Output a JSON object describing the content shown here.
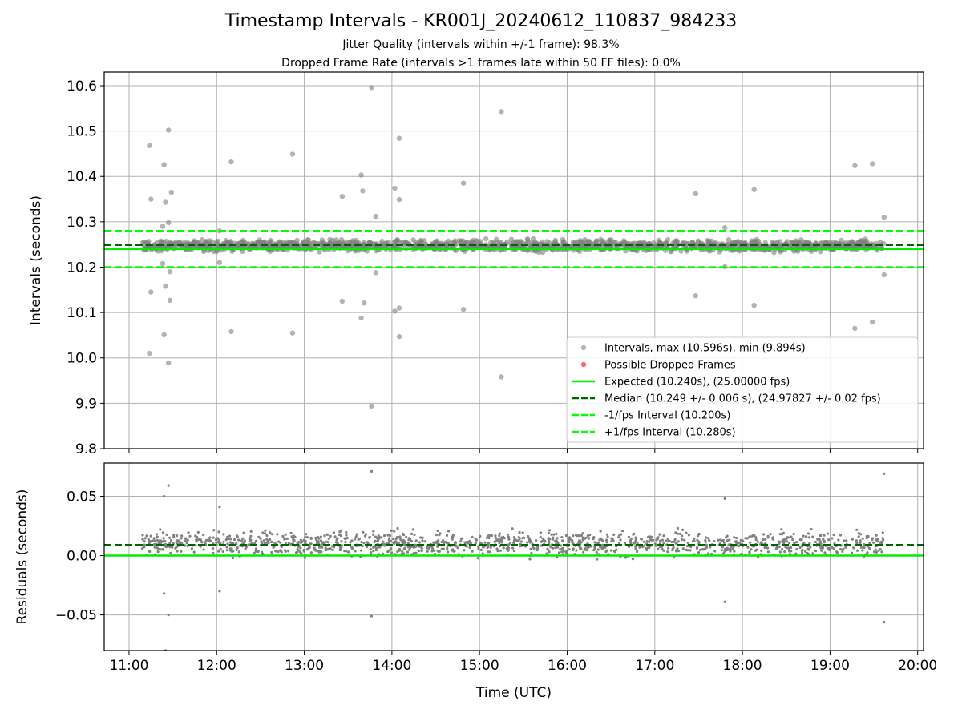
{
  "title": "Timestamp Intervals - KR001J_20240612_110837_984233",
  "subtitle_1": "Jitter Quality (intervals within +/-1 frame): 98.3%",
  "subtitle_2": "Dropped Frame Rate (intervals >1 frames late within 50 FF files): 0.0%",
  "colors": {
    "points": "#808080",
    "dropped": "#ff0000",
    "expected": "#00ee00",
    "median": "#006400",
    "interval": "#00ff00",
    "grid": "#b0b0b0"
  },
  "chart_data": [
    {
      "type": "scatter",
      "ylabel": "Intervals (seconds)",
      "xlim": [
        "10:43",
        "20:04"
      ],
      "ylim": [
        9.8,
        10.63
      ],
      "x_ticks": [
        "11:00",
        "12:00",
        "13:00",
        "14:00",
        "15:00",
        "16:00",
        "17:00",
        "18:00",
        "19:00",
        "20:00"
      ],
      "y_ticks": [
        "9.8",
        "9.9",
        "10.0",
        "10.1",
        "10.2",
        "10.3",
        "10.4",
        "10.5",
        "10.6"
      ],
      "grid": true,
      "legend_position": "lower-right",
      "legend": [
        "Intervals, max (10.596s), min (9.894s)",
        "Possible Dropped Frames",
        "Expected (10.240s), (25.00000 fps)",
        "Median (10.249 +/- 0.006 s), (24.97827 +/- 0.02 fps)",
        "-1/fps Interval (10.200s)",
        "+1/fps Interval (10.280s)"
      ],
      "reference_lines": {
        "expected": 10.24,
        "median": 10.249,
        "minus_one_fps": 10.2,
        "plus_one_fps": 10.28
      },
      "time_range": [
        "11:09",
        "19:37"
      ],
      "bulk_band": [
        10.23,
        10.265
      ],
      "outliers": [
        {
          "t": "11:14",
          "y": 10.468
        },
        {
          "t": "11:15",
          "y": 10.35
        },
        {
          "t": "11:15",
          "y": 10.145
        },
        {
          "t": "11:14",
          "y": 10.01
        },
        {
          "t": "11:23",
          "y": 10.29
        },
        {
          "t": "11:24",
          "y": 10.426
        },
        {
          "t": "11:25",
          "y": 10.343
        },
        {
          "t": "11:25",
          "y": 10.158
        },
        {
          "t": "11:24",
          "y": 10.051
        },
        {
          "t": "11:27",
          "y": 10.502
        },
        {
          "t": "11:27",
          "y": 10.298
        },
        {
          "t": "11:28",
          "y": 10.19
        },
        {
          "t": "11:28",
          "y": 10.127
        },
        {
          "t": "11:27",
          "y": 9.989
        },
        {
          "t": "11:29",
          "y": 10.365
        },
        {
          "t": "11:23",
          "y": 10.208
        },
        {
          "t": "12:02",
          "y": 10.28
        },
        {
          "t": "12:02",
          "y": 10.21
        },
        {
          "t": "12:10",
          "y": 10.432
        },
        {
          "t": "12:10",
          "y": 10.058
        },
        {
          "t": "12:52",
          "y": 10.449
        },
        {
          "t": "12:52",
          "y": 10.055
        },
        {
          "t": "13:26",
          "y": 10.356
        },
        {
          "t": "13:26",
          "y": 10.125
        },
        {
          "t": "13:39",
          "y": 10.403
        },
        {
          "t": "13:40",
          "y": 10.368
        },
        {
          "t": "13:39",
          "y": 10.088
        },
        {
          "t": "13:41",
          "y": 10.121
        },
        {
          "t": "13:46",
          "y": 10.596
        },
        {
          "t": "13:46",
          "y": 9.894
        },
        {
          "t": "13:49",
          "y": 10.312
        },
        {
          "t": "13:49",
          "y": 10.188
        },
        {
          "t": "14:02",
          "y": 10.374
        },
        {
          "t": "14:02",
          "y": 10.103
        },
        {
          "t": "14:05",
          "y": 10.484
        },
        {
          "t": "14:05",
          "y": 10.349
        },
        {
          "t": "14:05",
          "y": 10.11
        },
        {
          "t": "14:05",
          "y": 10.047
        },
        {
          "t": "14:49",
          "y": 10.385
        },
        {
          "t": "14:49",
          "y": 10.107
        },
        {
          "t": "15:15",
          "y": 10.543
        },
        {
          "t": "15:15",
          "y": 9.958
        },
        {
          "t": "17:28",
          "y": 10.362
        },
        {
          "t": "17:28",
          "y": 10.137
        },
        {
          "t": "17:48",
          "y": 10.287
        },
        {
          "t": "17:48",
          "y": 10.201
        },
        {
          "t": "18:08",
          "y": 10.371
        },
        {
          "t": "18:08",
          "y": 10.116
        },
        {
          "t": "19:17",
          "y": 10.424
        },
        {
          "t": "19:17",
          "y": 10.065
        },
        {
          "t": "19:29",
          "y": 10.428
        },
        {
          "t": "19:29",
          "y": 10.079
        },
        {
          "t": "19:37",
          "y": 10.31
        },
        {
          "t": "19:37",
          "y": 10.183
        }
      ]
    },
    {
      "type": "scatter",
      "xlabel": "Time (UTC)",
      "ylabel": "Residuals (seconds)",
      "xlim": [
        "10:43",
        "20:04"
      ],
      "ylim": [
        -0.08,
        0.078
      ],
      "x_ticks": [
        "11:00",
        "12:00",
        "13:00",
        "14:00",
        "15:00",
        "16:00",
        "17:00",
        "18:00",
        "19:00",
        "20:00"
      ],
      "y_ticks": [
        "−0.05",
        "0.00",
        "0.05"
      ],
      "grid": true,
      "reference_lines": {
        "zero": 0.0,
        "median_residual": 0.009
      },
      "time_range": [
        "11:09",
        "19:37"
      ],
      "bulk_band": [
        -0.005,
        0.025
      ],
      "outliers": [
        {
          "t": "11:24",
          "y": 0.05
        },
        {
          "t": "11:27",
          "y": 0.059
        },
        {
          "t": "11:24",
          "y": -0.032
        },
        {
          "t": "11:27",
          "y": -0.05
        },
        {
          "t": "11:25",
          "y": -0.08
        },
        {
          "t": "12:02",
          "y": 0.041
        },
        {
          "t": "12:02",
          "y": -0.03
        },
        {
          "t": "13:46",
          "y": 0.071
        },
        {
          "t": "13:46",
          "y": -0.051
        },
        {
          "t": "17:48",
          "y": 0.048
        },
        {
          "t": "17:48",
          "y": -0.039
        },
        {
          "t": "19:37",
          "y": 0.069
        },
        {
          "t": "19:37",
          "y": -0.056
        }
      ]
    }
  ]
}
